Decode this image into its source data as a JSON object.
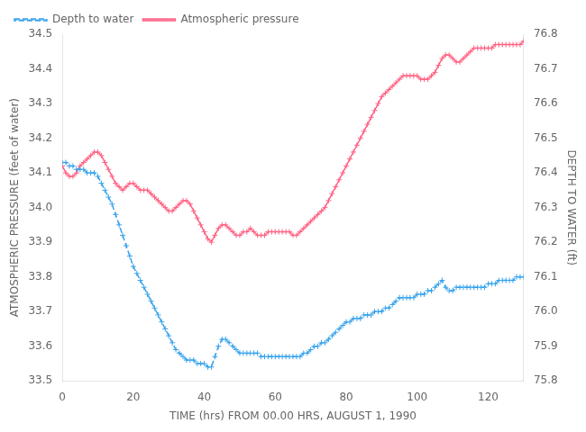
{
  "chart_data": {
    "type": "line",
    "xlabel": "TIME (hrs) FROM 00.00 HRS, AUGUST 1, 1990",
    "ylabel": "ATMOSPHERIC PRESSURE (feet of water)",
    "y2label": "DEPTH TO WATER (ft)",
    "x": [
      0,
      1,
      2,
      3,
      4,
      5,
      6,
      7,
      8,
      9,
      10,
      11,
      12,
      13,
      14,
      15,
      16,
      17,
      18,
      19,
      20,
      21,
      22,
      23,
      24,
      25,
      26,
      27,
      28,
      29,
      30,
      31,
      32,
      33,
      34,
      35,
      36,
      37,
      38,
      39,
      40,
      41,
      42,
      43,
      44,
      45,
      46,
      47,
      48,
      49,
      50,
      51,
      52,
      53,
      54,
      55,
      56,
      57,
      58,
      59,
      60,
      61,
      62,
      63,
      64,
      65,
      66,
      67,
      68,
      69,
      70,
      71,
      72,
      73,
      74,
      75,
      76,
      77,
      78,
      79,
      80,
      81,
      82,
      83,
      84,
      85,
      86,
      87,
      88,
      89,
      90,
      91,
      92,
      93,
      94,
      95,
      96,
      97,
      98,
      99,
      100,
      101,
      102,
      103,
      104,
      105,
      106,
      107,
      108,
      109,
      110,
      111,
      112,
      113,
      114,
      115,
      116,
      117,
      118,
      119,
      120,
      121,
      122,
      123,
      124,
      125,
      126,
      127,
      128,
      129,
      130
    ],
    "series": [
      {
        "name": "Depth to water",
        "axis": "y2",
        "line_style": "dashed",
        "marker": "plus",
        "values": [
          76.43,
          76.43,
          76.42,
          76.42,
          76.41,
          76.41,
          76.41,
          76.4,
          76.4,
          76.4,
          76.39,
          76.37,
          76.35,
          76.33,
          76.31,
          76.28,
          76.25,
          76.22,
          76.19,
          76.16,
          76.13,
          76.11,
          76.09,
          76.07,
          76.05,
          76.03,
          76.01,
          75.99,
          75.97,
          75.95,
          75.93,
          75.91,
          75.89,
          75.88,
          75.87,
          75.86,
          75.86,
          75.86,
          75.85,
          75.85,
          75.85,
          75.84,
          75.84,
          75.87,
          75.9,
          75.92,
          75.92,
          75.91,
          75.9,
          75.89,
          75.88,
          75.88,
          75.88,
          75.88,
          75.88,
          75.88,
          75.87,
          75.87,
          75.87,
          75.87,
          75.87,
          75.87,
          75.87,
          75.87,
          75.87,
          75.87,
          75.87,
          75.87,
          75.88,
          75.88,
          75.89,
          75.9,
          75.9,
          75.91,
          75.91,
          75.92,
          75.93,
          75.94,
          75.95,
          75.96,
          75.97,
          75.97,
          75.98,
          75.98,
          75.98,
          75.99,
          75.99,
          75.99,
          76.0,
          76.0,
          76.0,
          76.01,
          76.01,
          76.02,
          76.03,
          76.04,
          76.04,
          76.04,
          76.04,
          76.04,
          76.05,
          76.05,
          76.05,
          76.06,
          76.06,
          76.07,
          76.08,
          76.09,
          76.07,
          76.06,
          76.06,
          76.07,
          76.07,
          76.07,
          76.07,
          76.07,
          76.07,
          76.07,
          76.07,
          76.07,
          76.08,
          76.08,
          76.08,
          76.09,
          76.09,
          76.09,
          76.09,
          76.09,
          76.1,
          76.1,
          76.1
        ]
      },
      {
        "name": "Atmospheric pressure",
        "line_style": "solid",
        "marker": "plus",
        "values": [
          34.12,
          34.1,
          34.09,
          34.09,
          34.1,
          34.12,
          34.13,
          34.14,
          34.15,
          34.16,
          34.16,
          34.15,
          34.13,
          34.11,
          34.09,
          34.07,
          34.06,
          34.05,
          34.06,
          34.07,
          34.07,
          34.06,
          34.05,
          34.05,
          34.05,
          34.04,
          34.03,
          34.02,
          34.01,
          34.0,
          33.99,
          33.99,
          34.0,
          34.01,
          34.02,
          34.02,
          34.01,
          33.99,
          33.97,
          33.95,
          33.93,
          33.91,
          33.9,
          33.92,
          33.94,
          33.95,
          33.95,
          33.94,
          33.93,
          33.92,
          33.92,
          33.93,
          33.93,
          33.94,
          33.93,
          33.92,
          33.92,
          33.92,
          33.93,
          33.93,
          33.93,
          33.93,
          33.93,
          33.93,
          33.93,
          33.92,
          33.92,
          33.93,
          33.94,
          33.95,
          33.96,
          33.97,
          33.98,
          33.99,
          34.0,
          34.02,
          34.04,
          34.06,
          34.08,
          34.1,
          34.12,
          34.14,
          34.16,
          34.18,
          34.2,
          34.22,
          34.24,
          34.26,
          34.28,
          34.3,
          34.32,
          34.33,
          34.34,
          34.35,
          34.36,
          34.37,
          34.38,
          34.38,
          34.38,
          34.38,
          34.38,
          34.37,
          34.37,
          34.37,
          34.38,
          34.39,
          34.41,
          34.43,
          34.44,
          34.44,
          34.43,
          34.42,
          34.42,
          34.43,
          34.44,
          34.45,
          34.46,
          34.46,
          34.46,
          34.46,
          34.46,
          34.46,
          34.47,
          34.47,
          34.47,
          34.47,
          34.47,
          34.47,
          34.47,
          34.47,
          34.48
        ]
      }
    ],
    "xlim": [
      0,
      130
    ],
    "xticks": [
      0,
      20,
      40,
      60,
      80,
      100,
      120
    ],
    "ylim": [
      33.5,
      34.5
    ],
    "yticks": [
      33.5,
      33.6,
      33.7,
      33.8,
      33.9,
      {
        "value": 34.0,
        "label": "34.0"
      },
      34.1,
      34.2,
      34.3,
      34.4,
      34.5
    ],
    "y2lim": [
      75.8,
      76.8
    ],
    "y2ticks": [
      75.8,
      75.9,
      {
        "value": 76.0,
        "label": "76.0"
      },
      76.1,
      76.2,
      76.3,
      76.4,
      76.5,
      76.6,
      76.7,
      76.8
    ],
    "grid": false,
    "legend": "upper left"
  }
}
